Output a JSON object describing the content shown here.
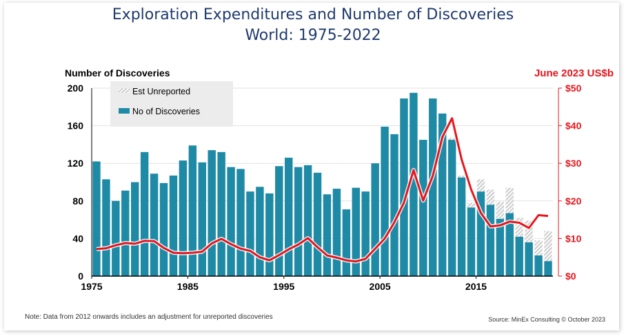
{
  "chart_data": {
    "type": "bar",
    "title": "Exploration Expenditures and Number of Discoveries",
    "subtitle": "World: 1975-2022",
    "ylabel": "Number of Discoveries",
    "y2label": "June 2023 US$b",
    "ylim": [
      0,
      200
    ],
    "y2lim": [
      0,
      50
    ],
    "yticks": [
      "0",
      "40",
      "80",
      "120",
      "160",
      "200"
    ],
    "y2ticks": [
      "$0",
      "$10",
      "$20",
      "$30",
      "$40",
      "$50"
    ],
    "xtick_labels": [
      "1975",
      "1985",
      "1995",
      "2005",
      "2015"
    ],
    "legend": {
      "unreported": "Est Unreported",
      "discoveries": "No of Discoveries"
    },
    "colors": {
      "bars": "#1f8aa5",
      "line": "#e8141b",
      "title": "#1f3a6e"
    },
    "years": [
      1975,
      1976,
      1977,
      1978,
      1979,
      1980,
      1981,
      1982,
      1983,
      1984,
      1985,
      1986,
      1987,
      1988,
      1989,
      1990,
      1991,
      1992,
      1993,
      1994,
      1995,
      1996,
      1997,
      1998,
      1999,
      2000,
      2001,
      2002,
      2003,
      2004,
      2005,
      2006,
      2007,
      2008,
      2009,
      2010,
      2011,
      2012,
      2013,
      2014,
      2015,
      2016,
      2017,
      2018,
      2019,
      2020,
      2021,
      2022
    ],
    "series": [
      {
        "name": "No of Discoveries",
        "values": [
          122,
          103,
          80,
          91,
          100,
          132,
          109,
          99,
          107,
          123,
          139,
          121,
          134,
          132,
          116,
          114,
          90,
          95,
          88,
          117,
          126,
          116,
          118,
          110,
          87,
          93,
          71,
          94,
          90,
          120,
          159,
          151,
          189,
          195,
          145,
          189,
          173,
          145,
          105,
          73,
          90,
          76,
          61,
          67,
          42,
          36,
          22,
          16
        ]
      },
      {
        "name": "Est Unreported",
        "values": [
          0,
          0,
          0,
          0,
          0,
          0,
          0,
          0,
          0,
          0,
          0,
          0,
          0,
          0,
          0,
          0,
          0,
          0,
          0,
          0,
          0,
          0,
          0,
          0,
          0,
          0,
          0,
          0,
          0,
          0,
          0,
          0,
          0,
          0,
          0,
          0,
          0,
          2,
          2,
          5,
          13,
          16,
          18,
          27,
          20,
          23,
          16,
          32
        ]
      },
      {
        "name": "Exploration Expenditures (US$b)",
        "values": [
          7.2,
          7.4,
          8.2,
          8.8,
          8.6,
          9.4,
          9.3,
          7.5,
          6.2,
          6.1,
          6.2,
          6.5,
          8.7,
          9.9,
          8.5,
          7.3,
          6.7,
          5.0,
          4.2,
          5.6,
          7.1,
          8.4,
          10.1,
          7.7,
          5.5,
          4.9,
          4.2,
          3.9,
          4.6,
          7.3,
          10.0,
          14.3,
          19.6,
          28.2,
          20.1,
          26.7,
          37.0,
          42.0,
          31.0,
          23.0,
          16.8,
          13.2,
          13.5,
          14.5,
          14.2,
          12.8,
          16.2,
          16.0
        ]
      }
    ]
  },
  "note": "Note: Data from 2012 onwards  includes an adjustment for unreported discoveries",
  "source": "Source: MinEx Consulting © October 2023"
}
